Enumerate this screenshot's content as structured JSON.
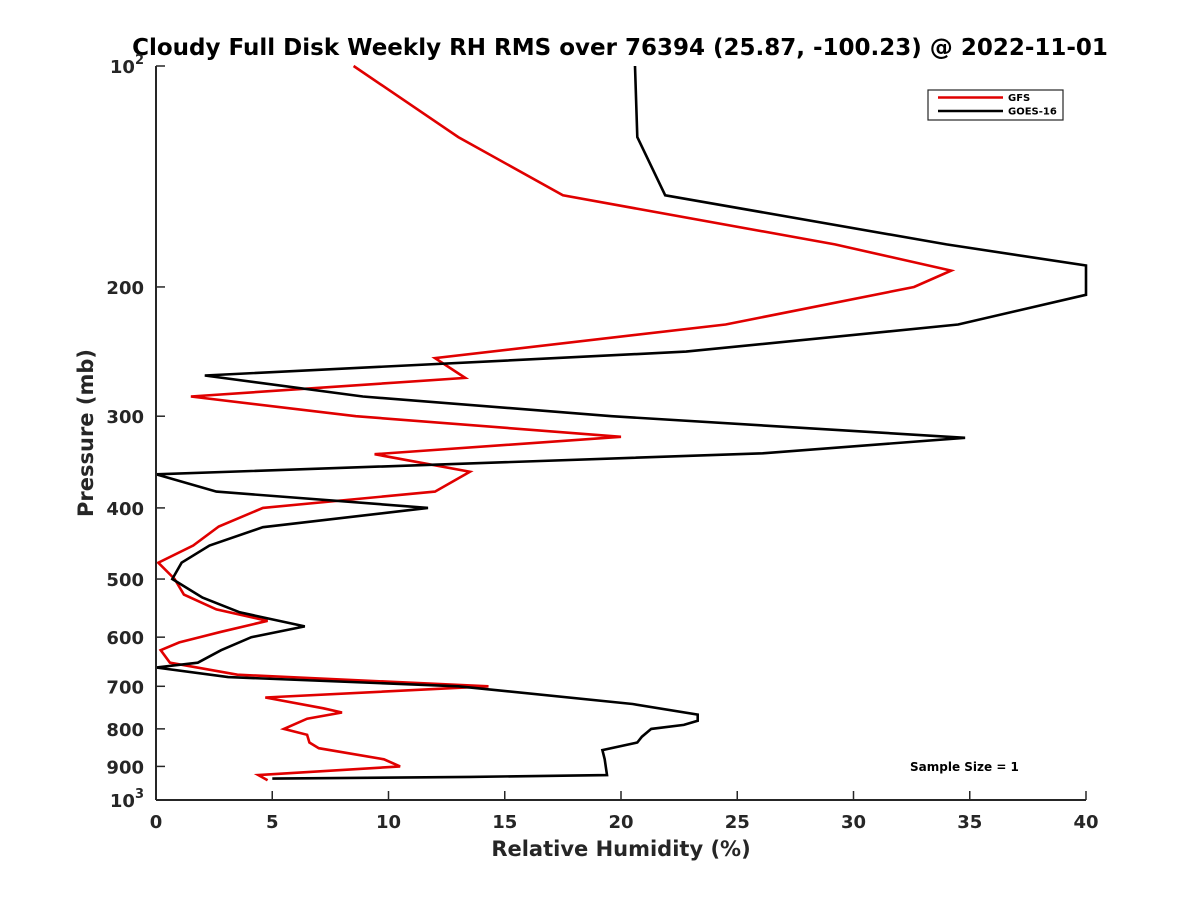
{
  "chart_data": {
    "type": "line",
    "title": "Cloudy Full Disk Weekly RH RMS over 76394 (25.87, -100.23) @ 2022-11-01",
    "xlabel": "Relative Humidity (%)",
    "ylabel": "Pressure (mb)",
    "xlim": [
      0,
      40
    ],
    "ylim": [
      100,
      1000
    ],
    "yscale": "log",
    "y_reversed": true,
    "grid": false,
    "legend_position": "top-right",
    "x_ticks": [
      0,
      5,
      10,
      15,
      20,
      25,
      30,
      35,
      40
    ],
    "x_tick_labels": [
      "0",
      "5",
      "10",
      "15",
      "20",
      "25",
      "30",
      "35",
      "40"
    ],
    "y_ticks": [
      100,
      200,
      300,
      400,
      500,
      600,
      700,
      800,
      900,
      1000
    ],
    "y_tick_labels": [
      {
        "base": "10",
        "exp": "2"
      },
      {
        "base": "200",
        "exp": ""
      },
      {
        "base": "300",
        "exp": ""
      },
      {
        "base": "400",
        "exp": ""
      },
      {
        "base": "500",
        "exp": ""
      },
      {
        "base": "600",
        "exp": ""
      },
      {
        "base": "700",
        "exp": ""
      },
      {
        "base": "800",
        "exp": ""
      },
      {
        "base": "900",
        "exp": ""
      },
      {
        "base": "10",
        "exp": "3"
      }
    ],
    "annotation": "Sample Size = 1",
    "series": [
      {
        "name": "GFS",
        "color": "#e00000",
        "points": [
          [
            8.5,
            100
          ],
          [
            13.0,
            125
          ],
          [
            17.5,
            150
          ],
          [
            29.2,
            175
          ],
          [
            34.2,
            190
          ],
          [
            32.6,
            200
          ],
          [
            24.5,
            225
          ],
          [
            12.0,
            250
          ],
          [
            13.3,
            266
          ],
          [
            1.5,
            282
          ],
          [
            8.6,
            300
          ],
          [
            20.0,
            320
          ],
          [
            9.4,
            338
          ],
          [
            13.5,
            357
          ],
          [
            12.0,
            380
          ],
          [
            4.6,
            400
          ],
          [
            2.7,
            424
          ],
          [
            1.6,
            450
          ],
          [
            0.1,
            475
          ],
          [
            0.8,
            500
          ],
          [
            1.2,
            525
          ],
          [
            2.6,
            550
          ],
          [
            4.8,
            570
          ],
          [
            2.8,
            590
          ],
          [
            1.0,
            610
          ],
          [
            0.2,
            625
          ],
          [
            0.6,
            650
          ],
          [
            3.5,
            675
          ],
          [
            14.3,
            700
          ],
          [
            4.7,
            725
          ],
          [
            7.2,
            750
          ],
          [
            8.0,
            760
          ],
          [
            6.5,
            775
          ],
          [
            5.5,
            800
          ],
          [
            6.5,
            815
          ],
          [
            6.6,
            835
          ],
          [
            7.0,
            850
          ],
          [
            9.8,
            880
          ],
          [
            10.5,
            900
          ],
          [
            4.4,
            925
          ],
          [
            4.8,
            940
          ]
        ]
      },
      {
        "name": "GOES-16",
        "color": "#000000",
        "points": [
          [
            20.6,
            100
          ],
          [
            20.7,
            125
          ],
          [
            21.9,
            150
          ],
          [
            34.0,
            175
          ],
          [
            40.0,
            187
          ],
          [
            40.0,
            205
          ],
          [
            34.5,
            225
          ],
          [
            22.8,
            245
          ],
          [
            2.1,
            264
          ],
          [
            8.9,
            282
          ],
          [
            19.6,
            300
          ],
          [
            34.8,
            321
          ],
          [
            26.1,
            337
          ],
          [
            0.0,
            360
          ],
          [
            2.6,
            380
          ],
          [
            11.7,
            400
          ],
          [
            4.6,
            425
          ],
          [
            2.3,
            450
          ],
          [
            1.1,
            475
          ],
          [
            0.7,
            500
          ],
          [
            2.0,
            530
          ],
          [
            3.6,
            555
          ],
          [
            6.4,
            580
          ],
          [
            4.1,
            600
          ],
          [
            2.8,
            625
          ],
          [
            1.8,
            650
          ],
          [
            0.0,
            660
          ],
          [
            3.1,
            680
          ],
          [
            13.0,
            700
          ],
          [
            20.5,
            740
          ],
          [
            23.3,
            765
          ],
          [
            23.3,
            780
          ],
          [
            22.7,
            790
          ],
          [
            21.3,
            800
          ],
          [
            20.9,
            820
          ],
          [
            20.7,
            835
          ],
          [
            19.2,
            855
          ],
          [
            19.3,
            880
          ],
          [
            19.4,
            925
          ],
          [
            13.5,
            930
          ],
          [
            5.0,
            935
          ]
        ]
      }
    ]
  }
}
